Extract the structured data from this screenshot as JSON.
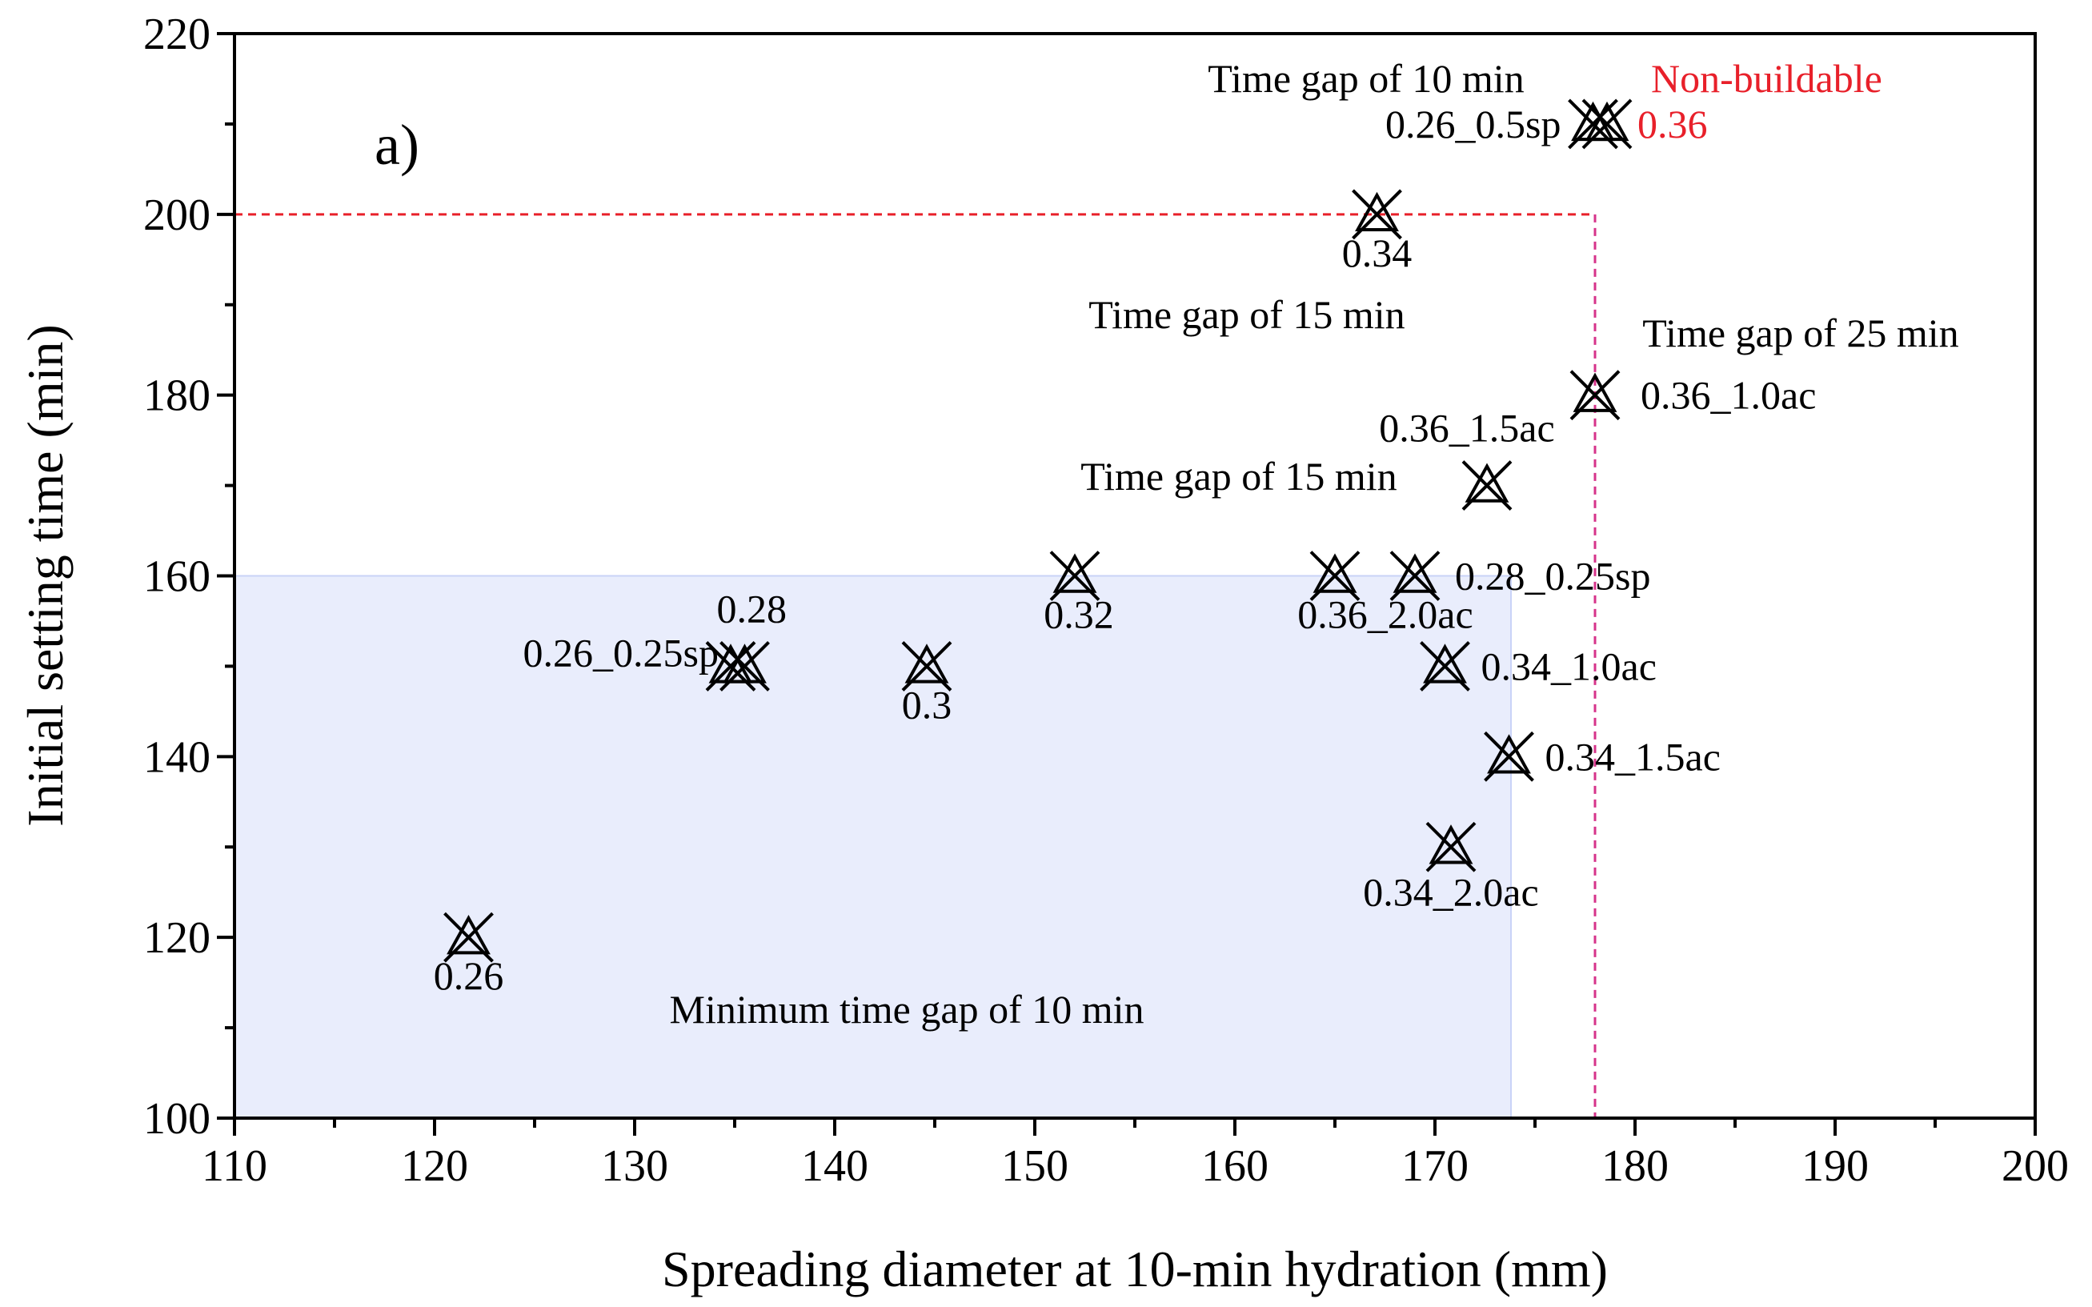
{
  "chart_data": {
    "type": "scatter",
    "panel_label": "a)",
    "xlabel": "Spreading diameter at 10-min hydration (mm)",
    "ylabel": "Initial setting time (min)",
    "xlim": [
      110,
      200
    ],
    "ylim": [
      100,
      220
    ],
    "xticks": [
      110,
      120,
      130,
      140,
      150,
      160,
      170,
      180,
      190,
      200
    ],
    "yticks": [
      100,
      120,
      140,
      160,
      180,
      200,
      220
    ],
    "marker": "cross-triangle",
    "colors": {
      "marker": "#000000",
      "region_fill": "#e9edfc",
      "region_edge": "#c9d3f7",
      "boundary": "#e8202a",
      "boundary_v": "#d6338a"
    },
    "points": [
      {
        "label": "0.26",
        "x": 121.7,
        "y": 120
      },
      {
        "label": "0.26_0.25sp",
        "x": 134.8,
        "y": 150
      },
      {
        "label": "0.28",
        "x": 135.5,
        "y": 150
      },
      {
        "label": "0.3",
        "x": 144.6,
        "y": 150
      },
      {
        "label": "0.32",
        "x": 152.0,
        "y": 160
      },
      {
        "label": "0.36_2.0ac",
        "x": 165.0,
        "y": 160
      },
      {
        "label": "0.28_0.25sp",
        "x": 169.0,
        "y": 160
      },
      {
        "label": "0.34_1.0ac",
        "x": 170.5,
        "y": 150
      },
      {
        "label": "0.34_2.0ac",
        "x": 170.8,
        "y": 130
      },
      {
        "label": "0.34_1.5ac",
        "x": 173.7,
        "y": 140
      },
      {
        "label": "0.36_1.5ac",
        "x": 172.6,
        "y": 170
      },
      {
        "label": "0.36_1.0ac",
        "x": 178.0,
        "y": 180
      },
      {
        "label": "0.34",
        "x": 167.1,
        "y": 200
      },
      {
        "label": "0.26_0.5sp",
        "x": 177.9,
        "y": 210
      },
      {
        "label": "0.36",
        "x": 178.6,
        "y": 210
      }
    ],
    "annotations": [
      {
        "key": "min_gap",
        "text": "Minimum time gap of 10 min"
      },
      {
        "key": "gap15_lower",
        "text": "Time gap of 15 min"
      },
      {
        "key": "gap15_upper",
        "text": "Time gap of 15 min"
      },
      {
        "key": "gap25",
        "text": "Time gap of 25 min"
      },
      {
        "key": "gap10",
        "text": "Time gap of 10 min"
      },
      {
        "key": "non_buildable",
        "text": "Non-buildable"
      }
    ],
    "buildable_region": {
      "x": [
        110,
        173.8
      ],
      "y": [
        100,
        160
      ]
    },
    "boundary_lines": {
      "x_limit": 178,
      "y_limit": 200
    }
  }
}
